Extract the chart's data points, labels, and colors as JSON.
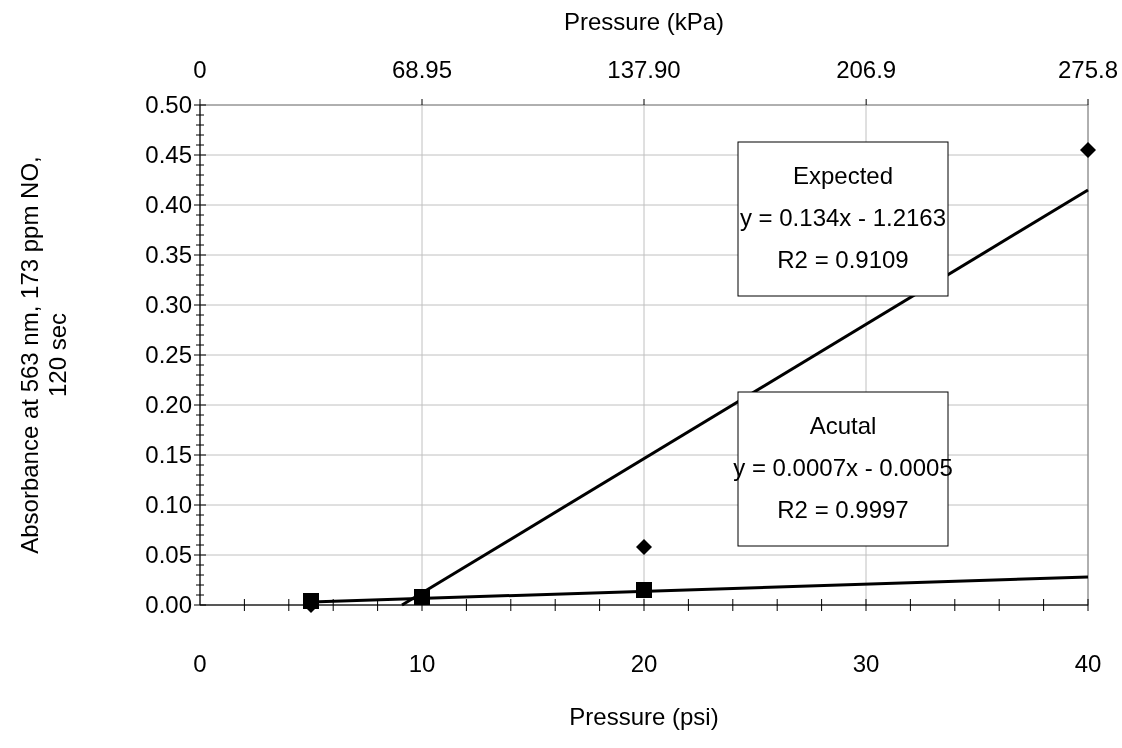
{
  "chart_data": {
    "type": "scatter",
    "xlabel": "Pressure (psi)",
    "ylabel": "Absorbance at 563 nm, 173 ppm NO, 120 sec",
    "x2label": "Pressure (kPa)",
    "xlim": [
      0,
      40
    ],
    "ylim": [
      0,
      0.5
    ],
    "x2lim": [
      0,
      275.8
    ],
    "xticks": [
      0,
      {
        "value": 2,
        "label": null
      },
      {
        "value": 4,
        "label": null
      },
      {
        "value": 6,
        "label": null
      },
      {
        "value": 8,
        "label": null
      },
      10,
      {
        "value": 12,
        "label": null
      },
      {
        "value": 14,
        "label": null
      },
      {
        "value": 16,
        "label": null
      },
      {
        "value": 18,
        "label": null
      },
      20,
      {
        "value": 22,
        "label": null
      },
      {
        "value": 24,
        "label": null
      },
      {
        "value": 26,
        "label": null
      },
      {
        "value": 28,
        "label": null
      },
      30,
      {
        "value": 32,
        "label": null
      },
      {
        "value": 34,
        "label": null
      },
      {
        "value": 36,
        "label": null
      },
      {
        "value": 38,
        "label": null
      },
      40
    ],
    "yticks": [
      {
        "value": 0,
        "label": "0.00"
      },
      {
        "value": 0.01,
        "label": null
      },
      {
        "value": 0.02,
        "label": null
      },
      {
        "value": 0.03,
        "label": null
      },
      {
        "value": 0.04,
        "label": null
      },
      {
        "value": 0.05,
        "label": "0.05"
      },
      {
        "value": 0.06,
        "label": null
      },
      {
        "value": 0.07,
        "label": null
      },
      {
        "value": 0.08,
        "label": null
      },
      {
        "value": 0.09,
        "label": null
      },
      {
        "value": 0.1,
        "label": "0.10"
      },
      {
        "value": 0.11,
        "label": null
      },
      {
        "value": 0.12,
        "label": null
      },
      {
        "value": 0.13,
        "label": null
      },
      {
        "value": 0.14,
        "label": null
      },
      {
        "value": 0.15,
        "label": "0.15"
      },
      {
        "value": 0.16,
        "label": null
      },
      {
        "value": 0.17,
        "label": null
      },
      {
        "value": 0.18,
        "label": null
      },
      {
        "value": 0.19,
        "label": null
      },
      {
        "value": 0.2,
        "label": "0.20"
      },
      {
        "value": 0.21,
        "label": null
      },
      {
        "value": 0.22,
        "label": null
      },
      {
        "value": 0.23,
        "label": null
      },
      {
        "value": 0.24,
        "label": null
      },
      {
        "value": 0.25,
        "label": "0.25"
      },
      {
        "value": 0.26,
        "label": null
      },
      {
        "value": 0.27,
        "label": null
      },
      {
        "value": 0.28,
        "label": null
      },
      {
        "value": 0.29,
        "label": null
      },
      {
        "value": 0.3,
        "label": "0.30"
      },
      {
        "value": 0.31,
        "label": null
      },
      {
        "value": 0.32,
        "label": null
      },
      {
        "value": 0.33,
        "label": null
      },
      {
        "value": 0.34,
        "label": null
      },
      {
        "value": 0.35,
        "label": "0.35"
      },
      {
        "value": 0.36,
        "label": null
      },
      {
        "value": 0.37,
        "label": null
      },
      {
        "value": 0.38,
        "label": null
      },
      {
        "value": 0.39,
        "label": null
      },
      {
        "value": 0.4,
        "label": "0.40"
      },
      {
        "value": 0.41,
        "label": null
      },
      {
        "value": 0.42,
        "label": null
      },
      {
        "value": 0.43,
        "label": null
      },
      {
        "value": 0.44,
        "label": null
      },
      {
        "value": 0.45,
        "label": "0.45"
      },
      {
        "value": 0.46,
        "label": null
      },
      {
        "value": 0.47,
        "label": null
      },
      {
        "value": 0.48,
        "label": null
      },
      {
        "value": 0.49,
        "label": null
      },
      {
        "value": 0.5,
        "label": "0.50"
      }
    ],
    "x2ticks": [
      0,
      68.95,
      {
        "value": 137.9,
        "label": "137.90"
      },
      206.9,
      275.8
    ],
    "grid": true,
    "series": [
      {
        "type": "line",
        "color": "#000000",
        "x": [
          9.1,
          40
        ],
        "values": [
          0,
          0.415
        ],
        "marker": "none",
        "line_style": "solid"
      },
      {
        "type": "line",
        "color": "#000000",
        "x": [
          5,
          40
        ],
        "values": [
          0.003,
          0.028
        ],
        "marker": "none",
        "line_style": "solid"
      },
      {
        "type": "scatter",
        "color": "#000000",
        "x": [
          5,
          10,
          20
        ],
        "values": [
          0.004,
          0.008,
          0.015
        ],
        "marker": "square"
      },
      {
        "type": "scatter",
        "color": "#000000",
        "x": [
          5,
          10,
          20,
          40
        ],
        "values": [
          0,
          null,
          0.058,
          0.455
        ],
        "marker": "diamond"
      }
    ],
    "annotations": [
      "Expected\ny = 0.134x - 1.2163\nR2 = 0.9109",
      "Acutal\ny = 0.0007x - 0.0005\nR2 = 0.9997"
    ]
  }
}
